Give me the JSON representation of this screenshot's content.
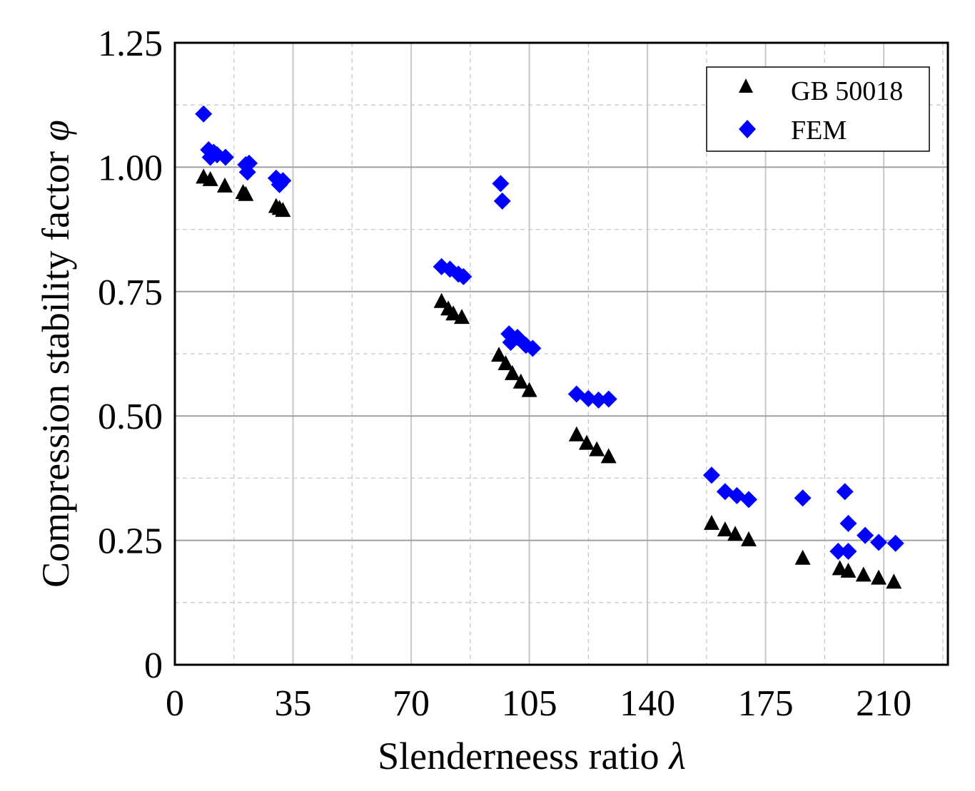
{
  "chart_data": {
    "type": "scatter",
    "title": "",
    "xlabel": "Slenderneess ratio",
    "xlabel_symbol": "λ",
    "ylabel": "Compression stability factor",
    "ylabel_symbol": "φ",
    "xlim": [
      0,
      229
    ],
    "ylim": [
      0,
      1.25
    ],
    "xticks": [
      0,
      35,
      70,
      105,
      140,
      175,
      210
    ],
    "xtick_labels": [
      "0",
      "35",
      "70",
      "105",
      "140",
      "175",
      "210"
    ],
    "yticks": [
      0,
      0.25,
      0.5,
      0.75,
      1.0,
      1.25
    ],
    "ytick_labels": [
      "0",
      "0.25",
      "0.50",
      "0.75",
      "1.00",
      "1.25"
    ],
    "grid": true,
    "legend_position": "top-right",
    "series": [
      {
        "name": "GB 50018",
        "marker": "triangle",
        "color": "#000000",
        "points": [
          [
            8.5,
            0.98
          ],
          [
            10.5,
            0.975
          ],
          [
            14.8,
            0.962
          ],
          [
            20.2,
            0.949
          ],
          [
            21.0,
            0.945
          ],
          [
            30.0,
            0.921
          ],
          [
            31.0,
            0.917
          ],
          [
            32.0,
            0.913
          ],
          [
            79.0,
            0.73
          ],
          [
            81.0,
            0.715
          ],
          [
            82.5,
            0.705
          ],
          [
            85.0,
            0.698
          ],
          [
            96.0,
            0.622
          ],
          [
            98.0,
            0.605
          ],
          [
            100.0,
            0.585
          ],
          [
            102.5,
            0.568
          ],
          [
            105.0,
            0.551
          ],
          [
            119.0,
            0.462
          ],
          [
            122.0,
            0.445
          ],
          [
            125.0,
            0.432
          ],
          [
            128.5,
            0.418
          ],
          [
            159.0,
            0.284
          ],
          [
            163.0,
            0.271
          ],
          [
            166.0,
            0.262
          ],
          [
            170.0,
            0.251
          ],
          [
            186.0,
            0.214
          ],
          [
            197.0,
            0.193
          ],
          [
            199.5,
            0.188
          ],
          [
            204.0,
            0.18
          ],
          [
            208.5,
            0.174
          ],
          [
            213.0,
            0.166
          ]
        ]
      },
      {
        "name": "FEM",
        "marker": "diamond",
        "color": "#0000ff",
        "points": [
          [
            8.5,
            1.107
          ],
          [
            10.0,
            1.035
          ],
          [
            10.5,
            1.02
          ],
          [
            11.5,
            1.03
          ],
          [
            12.5,
            1.025
          ],
          [
            15.0,
            1.02
          ],
          [
            21.0,
            1.005
          ],
          [
            21.5,
            0.99
          ],
          [
            22.0,
            1.008
          ],
          [
            30.0,
            0.978
          ],
          [
            31.0,
            0.965
          ],
          [
            32.0,
            0.973
          ],
          [
            79.0,
            0.8
          ],
          [
            81.5,
            0.795
          ],
          [
            84.0,
            0.785
          ],
          [
            85.5,
            0.78
          ],
          [
            96.5,
            0.967
          ],
          [
            97.0,
            0.932
          ],
          [
            99.0,
            0.665
          ],
          [
            99.5,
            0.648
          ],
          [
            101.5,
            0.658
          ],
          [
            104.0,
            0.642
          ],
          [
            106.0,
            0.636
          ],
          [
            119.0,
            0.544
          ],
          [
            122.5,
            0.535
          ],
          [
            125.5,
            0.532
          ],
          [
            128.5,
            0.534
          ],
          [
            159.0,
            0.381
          ],
          [
            163.0,
            0.348
          ],
          [
            166.5,
            0.34
          ],
          [
            170.0,
            0.332
          ],
          [
            186.0,
            0.335
          ],
          [
            196.5,
            0.228
          ],
          [
            199.5,
            0.228
          ],
          [
            198.5,
            0.348
          ],
          [
            199.5,
            0.284
          ],
          [
            204.5,
            0.26
          ],
          [
            208.5,
            0.246
          ],
          [
            213.5,
            0.244
          ]
        ]
      }
    ]
  }
}
